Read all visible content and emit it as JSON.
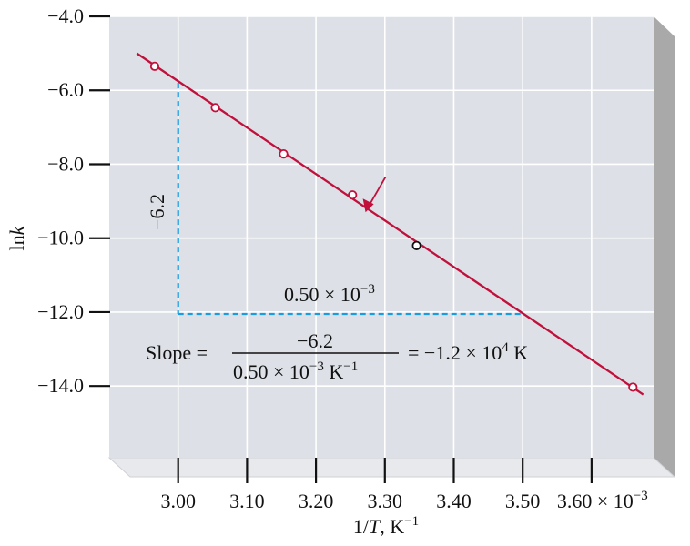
{
  "chart_data": {
    "type": "scatter",
    "xlabel_main": "1/",
    "xlabel_var": "T",
    "xlabel_unit": ", K",
    "xlabel_exp": "−1",
    "ylabel_main": "ln",
    "ylabel_var": "k",
    "x_ticks": [
      "3.00",
      "3.10",
      "3.20",
      "3.30",
      "3.40",
      "3.50"
    ],
    "x_tick_last": "3.60",
    "x_multiplier": "× 10",
    "x_multiplier_exp": "−3",
    "y_ticks": [
      "−4.0",
      "−6.0",
      "−8.0",
      "−10.0",
      "−12.0",
      "−14.0"
    ],
    "xlim": [
      2.9,
      3.69
    ],
    "ylim": [
      -15.94,
      -4.0
    ],
    "grid": true,
    "points": [
      {
        "x": 2.966,
        "y": -5.35,
        "color": "#c0103b"
      },
      {
        "x": 3.054,
        "y": -6.47,
        "color": "#c0103b"
      },
      {
        "x": 3.153,
        "y": -7.72,
        "color": "#c0103b"
      },
      {
        "x": 3.253,
        "y": -8.83,
        "color": "#c0103b"
      },
      {
        "x": 3.346,
        "y": -10.2,
        "color": "#111111"
      },
      {
        "x": 3.66,
        "y": -14.03,
        "color": "#c0103b"
      }
    ],
    "fit_line": {
      "x": [
        2.94,
        3.675
      ],
      "y": [
        -5.0,
        -14.23
      ],
      "color": "#c0103b"
    },
    "triangle": {
      "x0": 3.0,
      "x1": 3.5,
      "y_top": -5.8,
      "y_base": -12.05,
      "color": "#1a9de0"
    },
    "arrow_target": {
      "x": 3.272,
      "y": -9.3
    },
    "slope_vertical_label": "−6.2",
    "slope_horizontal_label_main": "0.50 × 10",
    "slope_horizontal_label_exp": "−3",
    "formula": {
      "prefix": "Slope =",
      "numerator": "−6.2",
      "denominator_main": "0.50 × 10",
      "denominator_exp": "−3",
      "denominator_unit": " K",
      "denominator_unit_exp": "−1",
      "result_main": "= −1.2 × 10",
      "result_exp": "4",
      "result_unit": " K"
    },
    "colors": {
      "plot_bg": "#dde0e6",
      "frame_side": "#a9a9a9",
      "frame_bottom": "#e8e9ec",
      "line": "#c0103b",
      "dashed": "#1a9de0"
    }
  }
}
